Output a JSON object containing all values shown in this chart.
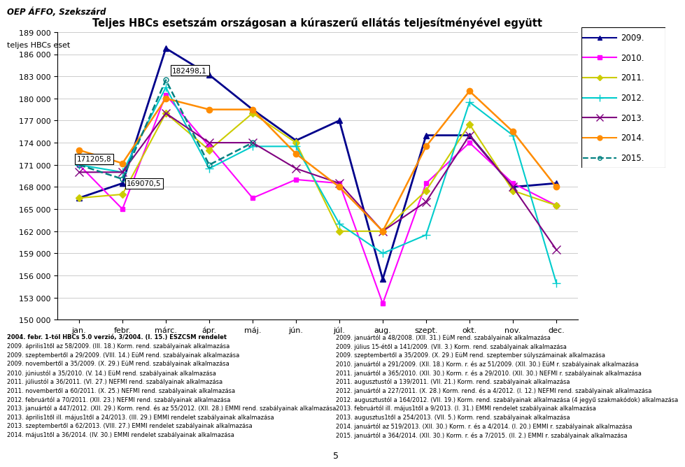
{
  "title": "Teljes HBCs esetszám országosan a kúraszerű ellátás teljesítményével együtt",
  "top_left_text": "OEP ÁFFO, Szekszárd",
  "ylabel_text": "teljes HBCs eset",
  "months": [
    "jan.",
    "febr.",
    "márc.",
    "ápr.",
    "máj.",
    "jún.",
    "júl.",
    "aug.",
    "szept.",
    "okt.",
    "nov.",
    "dec."
  ],
  "ylim": [
    150000,
    189000
  ],
  "series": {
    "2009": {
      "color": "#00008B",
      "marker": "^",
      "linestyle": "-",
      "linewidth": 2.0,
      "markersize": 6,
      "values": [
        166500,
        168500,
        186800,
        183200,
        178500,
        174300,
        177000,
        155500,
        175000,
        175000,
        168000,
        168500
      ]
    },
    "2010": {
      "color": "#FF00FF",
      "marker": "s",
      "linestyle": "-",
      "linewidth": 1.5,
      "markersize": 5,
      "values": [
        171000,
        165000,
        180500,
        173500,
        166500,
        169000,
        168500,
        152200,
        168500,
        174000,
        168500,
        165500
      ]
    },
    "2011": {
      "color": "#CCCC00",
      "marker": "D",
      "linestyle": "-",
      "linewidth": 1.5,
      "markersize": 5,
      "values": [
        166500,
        167000,
        178000,
        173000,
        178000,
        174000,
        162000,
        162000,
        167500,
        176500,
        167500,
        165500
      ]
    },
    "2012": {
      "color": "#00CCCC",
      "marker": "+",
      "linestyle": "-",
      "linewidth": 1.5,
      "markersize": 8,
      "values": [
        171000,
        170000,
        181500,
        170500,
        173500,
        173500,
        163000,
        159000,
        161500,
        179500,
        175000,
        155000
      ]
    },
    "2013": {
      "color": "#800080",
      "marker": "x",
      "linestyle": "-",
      "linewidth": 1.5,
      "markersize": 8,
      "values": [
        170000,
        170000,
        178000,
        174000,
        174000,
        170500,
        168500,
        162000,
        166000,
        175000,
        168000,
        159500
      ]
    },
    "2014": {
      "color": "#FF8C00",
      "marker": "o",
      "linestyle": "-",
      "linewidth": 1.8,
      "markersize": 6,
      "values": [
        173000,
        171206,
        180000,
        178500,
        178500,
        172500,
        168000,
        162000,
        173500,
        181000,
        175500,
        168000
      ]
    },
    "2015": {
      "color": "#008080",
      "marker": "o",
      "linestyle": "--",
      "linewidth": 1.8,
      "markersize": 5,
      "values": [
        171000,
        169071,
        182498,
        171000,
        174000,
        null,
        null,
        null,
        null,
        null,
        null,
        null
      ]
    }
  },
  "ann_182498": {
    "text": "182498,1",
    "xi": 2,
    "yi": 182498
  },
  "ann_171206": {
    "text": "171205,8",
    "xi": 0,
    "yi": 171206
  },
  "ann_169071": {
    "text": "169070,5",
    "xi": 1,
    "yi": 169071
  },
  "legend_entries": [
    "2009.",
    "2010.",
    "2011.",
    "2012.",
    "2013.",
    "2014.",
    "2015."
  ],
  "footer_left": [
    "2004. febr. 1-től HBCs 5.0 verzió, 3/2004. (I. 15.) ESZCSM rendelet",
    "2009. április1től az 58/2009. (III. 18.) Korm. rend. szabályainak alkalmazása",
    "2009. szeptembertől a 29/2009. (VIII. 14.) EüM rend. szabályainak alkalmazása",
    "2009. novembertől a 35/2009. (X. 29.) EüM rend. szabályainak alkalmazása",
    "2010. júniustól a 35/2010. (V. 14.) EüM rend. szabályainak alkalmazása",
    "2011. júliustól a 36/2011. (VI. 27.) NEFMI rend. szabályainak alkalmazása",
    "2011. novembertől a 60/2011. (X. 25.) NEFMI rend. szabályainak alkalmazása",
    "2012. februártól a 70/2011. (XII. 23.) NEFMI rend. szabályainak alkalmazása",
    "2013. januártól a 447/2012. (XII. 29.) Korm. rend. és az 55/2012. (XII. 28.) EMMI rend. szabályainak alkalmazása",
    "2013. április1től ill. május1től a 24/2013. (III. 29.) EMMI rendelet szabályainak alkalmazása",
    "2013. szeptembertől a 62/2013. (VIII. 27.) EMMI rendelet szabályainak alkalmazása",
    "2014. május1től a 36/2014. (IV. 30.) EMMI rendelet szabályainak alkalmazása"
  ],
  "footer_right": [
    "2009. januártól a 48/2008. (XII. 31.) EüM rend. szabályainak alkalmazása",
    "2009. július 15-étől a 141/2009. (VII. 3.) Korm. rend. szabályainak alkalmazása",
    "2009. szeptembertől a 35/2009. (X. 29.) EüM rend. szeptember súlyszámainak alkalmazása",
    "2010. januártól a 291/2009. (XII. 18.) Korm. r. és az 51/2009. (XII. 30.) EüM r. szabályainak alkalmazása",
    "2011. januártól a 365/2010. (XII. 30.) Korm. r. és a 29/2010. (XII. 30.) NEFMI r. szabályainak alkalmazása",
    "2011. augusztustól a 139/2011. (VII. 21.) Korm. rend. szabályainak alkalmazása",
    "2012. januártól a 227/2011. (X. 28.) Korm. rend. és a 4/2012. (I. 12.) NEFMI rend. szabályainak alkalmazása",
    "2012. augusztustól a 164/2012. (VII. 19.) Korm. rend. szabályainak alkalmazása (4 jegyű szakmakódok) alkalmazása",
    "2013. februártól ill. május1től a 9/2013. (I. 31.) EMMI rendelet szabályainak alkalmazása",
    "2013. augusztus1től a 254/2013. (VII. 5.) Korm. rend. szabályainak alkalmazása",
    "2014. januártól az 519/2013. (XII. 30.) Korm. r. és a 4/2014. (I. 20.) EMMI r. szabályainak alkalmazása",
    "2015. januártól a 364/2014. (XII. 30.) Korm. r. és a 7/2015. (II. 2.) EMMI r. szabályainak alkalmazása"
  ]
}
